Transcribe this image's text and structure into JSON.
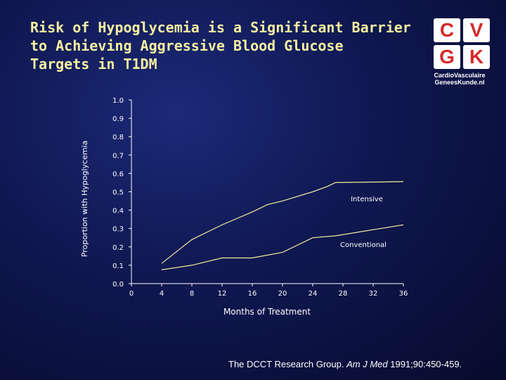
{
  "slide": {
    "title": "Risk of Hypoglycemia is a Significant Barrier\nto Achieving Aggressive Blood Glucose\nTargets in T1DM",
    "citation_pre": "The DCCT Research Group. ",
    "citation_journal": "Am J Med",
    "citation_post": " 1991;90:450-459."
  },
  "logo": {
    "letters": [
      "C",
      "V",
      "G",
      "K"
    ],
    "line1": "CardioVasculaire",
    "line2": "GeneesKunde.nl",
    "color": "#d42a2a"
  },
  "colors": {
    "axis": "#ffffff",
    "line": "#f0ec9a",
    "title": "#f5f0a0"
  },
  "chart_data": {
    "type": "line",
    "title": "",
    "xlabel": "Months of Treatment",
    "ylabel": "Proportion with Hypoglycemia",
    "xlim": [
      0,
      36
    ],
    "ylim": [
      0,
      1.0
    ],
    "x_ticks": [
      0,
      4,
      8,
      12,
      16,
      20,
      24,
      28,
      32,
      36
    ],
    "y_ticks": [
      "0.0",
      "0.1",
      "0.2",
      "0.3",
      "0.4",
      "0.5",
      "0.6",
      "0.7",
      "0.8",
      "0.9",
      "1.0"
    ],
    "grid": false,
    "series": [
      {
        "name": "Intensive",
        "x": [
          4,
          8,
          12,
          16,
          18,
          20,
          24,
          26,
          27,
          36
        ],
        "y": [
          0.11,
          0.24,
          0.32,
          0.39,
          0.43,
          0.45,
          0.5,
          0.53,
          0.55,
          0.555
        ]
      },
      {
        "name": "Conventional",
        "x": [
          4,
          8,
          12,
          16,
          20,
          24,
          27,
          30,
          33,
          36
        ],
        "y": [
          0.075,
          0.1,
          0.14,
          0.14,
          0.17,
          0.25,
          0.26,
          0.28,
          0.3,
          0.32
        ]
      }
    ]
  }
}
